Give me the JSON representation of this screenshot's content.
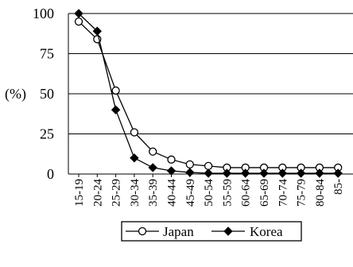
{
  "chart_data": {
    "type": "line",
    "ylabel": "(%)",
    "xlabel": "",
    "title": "",
    "ylim": [
      0,
      100
    ],
    "yticks": [
      0,
      25,
      50,
      75,
      100
    ],
    "grid": {
      "horizontal": true,
      "vertical": false
    },
    "legend_position": "bottom",
    "categories": [
      "15-19",
      "20-24",
      "25-29",
      "30-34",
      "35-39",
      "40-44",
      "45-49",
      "50-54",
      "55-59",
      "60-64",
      "65-69",
      "70-74",
      "75-79",
      "80-84",
      "85+"
    ],
    "category_labels_shown": [
      "15-19",
      "20-24",
      "25-29",
      "30-34",
      "35-39",
      "40-44",
      "45-49",
      "50-54",
      "55-59",
      "60-64",
      "65-69",
      "70-74",
      "75-79",
      "80-84",
      "85-"
    ],
    "series": [
      {
        "name": "Japan",
        "marker": "circle-open",
        "values": [
          95,
          84,
          52,
          26,
          14,
          9,
          6,
          5,
          4,
          4,
          4,
          4,
          4,
          4,
          4
        ]
      },
      {
        "name": "Korea",
        "marker": "diamond-filled",
        "values": [
          100,
          89,
          40,
          10,
          4,
          2,
          1,
          0.5,
          0.5,
          0.5,
          0.5,
          0.5,
          0.5,
          0.5,
          0.5
        ]
      }
    ]
  }
}
